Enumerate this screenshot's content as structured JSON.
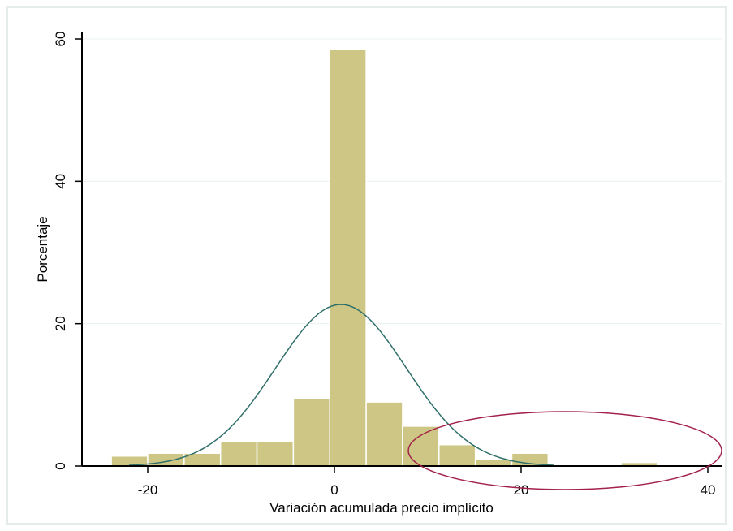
{
  "chart_data": {
    "type": "histogram",
    "xlabel": "Variación acumulada precio implícito",
    "ylabel": "Porcentaje",
    "xlim": [
      -26,
      41
    ],
    "ylim": [
      0,
      62
    ],
    "xticks": [
      -20,
      0,
      20,
      40
    ],
    "yticks": [
      0,
      20,
      40,
      60
    ],
    "grid": true,
    "bins": [
      {
        "x0": -23.9,
        "x1": -20.0,
        "value": 1.4
      },
      {
        "x0": -20.0,
        "x1": -16.1,
        "value": 1.8
      },
      {
        "x0": -16.1,
        "x1": -12.2,
        "value": 1.8
      },
      {
        "x0": -12.2,
        "x1": -8.3,
        "value": 3.5
      },
      {
        "x0": -8.3,
        "x1": -4.4,
        "value": 3.5
      },
      {
        "x0": -4.4,
        "x1": -0.5,
        "value": 9.5
      },
      {
        "x0": -0.5,
        "x1": 3.4,
        "value": 58.5
      },
      {
        "x0": 3.4,
        "x1": 7.3,
        "value": 9.0
      },
      {
        "x0": 7.3,
        "x1": 11.2,
        "value": 5.6
      },
      {
        "x0": 11.2,
        "x1": 15.1,
        "value": 3.0
      },
      {
        "x0": 15.1,
        "x1": 19.0,
        "value": 0.9
      },
      {
        "x0": 19.0,
        "x1": 22.9,
        "value": 1.8
      },
      {
        "x0": 22.9,
        "x1": 26.8,
        "value": 0.0
      },
      {
        "x0": 26.8,
        "x1": 30.7,
        "value": 0.0
      },
      {
        "x0": 30.7,
        "x1": 34.6,
        "value": 0.5
      }
    ],
    "normal_curve": {
      "mean": 0.7,
      "sd": 7.0,
      "peak": 22.7
    },
    "colors": {
      "bar": "#cdc685",
      "curve": "#2f6f6a",
      "ellipse": "#a3224b"
    }
  }
}
